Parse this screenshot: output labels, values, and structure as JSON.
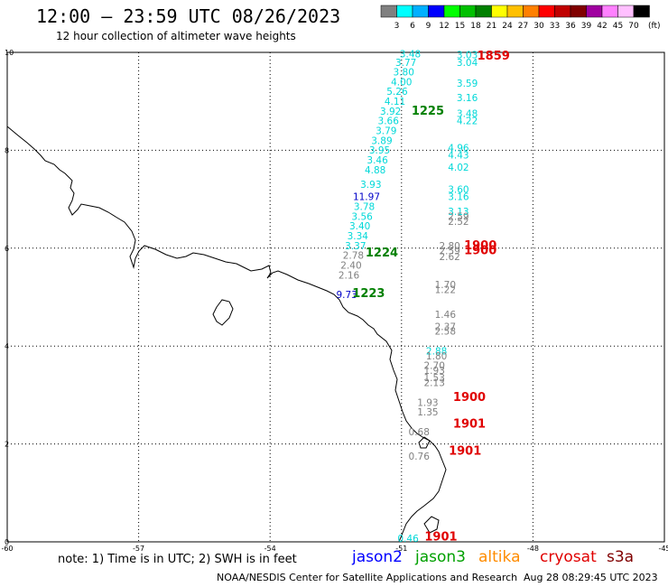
{
  "header": {
    "title": "12:00 – 23:59 UTC 08/26/2023",
    "subtitle": "12 hour collection of altimeter wave heights"
  },
  "legend": {
    "unit": "(ft)",
    "bins": [
      {
        "label": "3",
        "color": "#808080"
      },
      {
        "label": "6",
        "color": "#00ffff"
      },
      {
        "label": "9",
        "color": "#00b0ff"
      },
      {
        "label": "12",
        "color": "#0000ff"
      },
      {
        "label": "15",
        "color": "#00ff00"
      },
      {
        "label": "18",
        "color": "#00c000"
      },
      {
        "label": "21",
        "color": "#008000"
      },
      {
        "label": "24",
        "color": "#ffff00"
      },
      {
        "label": "27",
        "color": "#ffc000"
      },
      {
        "label": "30",
        "color": "#ff8000"
      },
      {
        "label": "33",
        "color": "#ff0000"
      },
      {
        "label": "36",
        "color": "#c00000"
      },
      {
        "label": "39",
        "color": "#800000"
      },
      {
        "label": "42",
        "color": "#a000a0"
      },
      {
        "label": "45",
        "color": "#ff80ff"
      },
      {
        "label": "70",
        "color": "#ffc0ff"
      },
      {
        "label": "",
        "color": "#000000"
      }
    ]
  },
  "axes": {
    "x_ticks": [
      "-60",
      "-57",
      "-54",
      "-51",
      "-48",
      "-45"
    ],
    "y_ticks": [
      "0",
      "2",
      "4",
      "6",
      "8",
      "10"
    ],
    "lon_range": [
      -60,
      -45
    ],
    "lat_range": [
      0,
      10
    ]
  },
  "colors": {
    "cyan": "#00d8d8",
    "gray": "#808080",
    "blue": "#0000c8",
    "time_green": "#008000",
    "time_red": "#e00000"
  },
  "track1": {
    "values": [
      {
        "t": "3.48",
        "c": "cyan",
        "lon": -50.8,
        "lat": 9.9
      },
      {
        "t": "3.77",
        "c": "cyan",
        "lon": -50.9,
        "lat": 9.72
      },
      {
        "t": "3.80",
        "c": "cyan",
        "lon": -50.95,
        "lat": 9.53
      },
      {
        "t": "4.00",
        "c": "cyan",
        "lon": -51.0,
        "lat": 9.33
      },
      {
        "t": "5.26",
        "c": "cyan",
        "lon": -51.1,
        "lat": 9.13
      },
      {
        "t": "4.11",
        "c": "cyan",
        "lon": -51.15,
        "lat": 8.93
      },
      {
        "t": "3.92",
        "c": "cyan",
        "lon": -51.25,
        "lat": 8.73
      },
      {
        "t": "3.66",
        "c": "cyan",
        "lon": -51.3,
        "lat": 8.53
      },
      {
        "t": "3.79",
        "c": "cyan",
        "lon": -51.35,
        "lat": 8.33
      },
      {
        "t": "3.89",
        "c": "cyan",
        "lon": -51.45,
        "lat": 8.13
      },
      {
        "t": "3.95",
        "c": "cyan",
        "lon": -51.5,
        "lat": 7.93
      },
      {
        "t": "3.46",
        "c": "cyan",
        "lon": -51.55,
        "lat": 7.73
      },
      {
        "t": "4.88",
        "c": "cyan",
        "lon": -51.6,
        "lat": 7.53
      },
      {
        "t": "3.93",
        "c": "cyan",
        "lon": -51.7,
        "lat": 7.23
      },
      {
        "t": "11.97",
        "c": "blue",
        "lon": -51.8,
        "lat": 6.98
      },
      {
        "t": "3.78",
        "c": "cyan",
        "lon": -51.85,
        "lat": 6.78
      },
      {
        "t": "3.56",
        "c": "cyan",
        "lon": -51.9,
        "lat": 6.58
      },
      {
        "t": "3.40",
        "c": "cyan",
        "lon": -51.95,
        "lat": 6.38
      },
      {
        "t": "3.34",
        "c": "cyan",
        "lon": -52.0,
        "lat": 6.18
      },
      {
        "t": "3.37",
        "c": "cyan",
        "lon": -52.05,
        "lat": 5.98
      },
      {
        "t": "2.78",
        "c": "gray",
        "lon": -52.1,
        "lat": 5.78
      },
      {
        "t": "2.40",
        "c": "gray",
        "lon": -52.15,
        "lat": 5.58
      },
      {
        "t": "2.16",
        "c": "gray",
        "lon": -52.2,
        "lat": 5.38
      },
      {
        "t": "9.73",
        "c": "blue",
        "lon": -52.25,
        "lat": 4.98
      }
    ],
    "times": [
      {
        "t": "1225",
        "c": "time_green",
        "lon": -50.4,
        "lat": 8.73
      },
      {
        "t": "1224",
        "c": "time_green",
        "lon": -51.45,
        "lat": 5.83
      },
      {
        "t": "1223",
        "c": "time_green",
        "lon": -51.75,
        "lat": 5.0
      }
    ]
  },
  "track2": {
    "values": [
      {
        "t": "3.03",
        "c": "cyan",
        "lon": -49.5,
        "lat": 9.88
      },
      {
        "t": "3.04",
        "c": "cyan",
        "lon": -49.5,
        "lat": 9.72
      },
      {
        "t": "3.59",
        "c": "cyan",
        "lon": -49.5,
        "lat": 9.3
      },
      {
        "t": "3.16",
        "c": "cyan",
        "lon": -49.5,
        "lat": 9.0
      },
      {
        "t": "3.48",
        "c": "cyan",
        "lon": -49.5,
        "lat": 8.68
      },
      {
        "t": "4.22",
        "c": "cyan",
        "lon": -49.5,
        "lat": 8.53
      },
      {
        "t": "4.96",
        "c": "cyan",
        "lon": -49.7,
        "lat": 7.98
      },
      {
        "t": "4.43",
        "c": "cyan",
        "lon": -49.7,
        "lat": 7.83
      },
      {
        "t": "4.02",
        "c": "cyan",
        "lon": -49.7,
        "lat": 7.58
      },
      {
        "t": "3.60",
        "c": "cyan",
        "lon": -49.7,
        "lat": 7.13
      },
      {
        "t": "3.16",
        "c": "cyan",
        "lon": -49.7,
        "lat": 6.98
      },
      {
        "t": "3.13",
        "c": "cyan",
        "lon": -49.7,
        "lat": 6.68
      },
      {
        "t": "2.59",
        "c": "gray",
        "lon": -49.7,
        "lat": 6.58
      },
      {
        "t": "2.52",
        "c": "gray",
        "lon": -49.7,
        "lat": 6.48
      },
      {
        "t": "2.80",
        "c": "gray",
        "lon": -49.9,
        "lat": 5.98
      },
      {
        "t": "2.59",
        "c": "gray",
        "lon": -49.9,
        "lat": 5.88
      },
      {
        "t": "2.62",
        "c": "gray",
        "lon": -49.9,
        "lat": 5.76
      },
      {
        "t": "1.70",
        "c": "gray",
        "lon": -50.0,
        "lat": 5.18
      },
      {
        "t": "1.22",
        "c": "gray",
        "lon": -50.0,
        "lat": 5.08
      },
      {
        "t": "1.46",
        "c": "gray",
        "lon": -50.0,
        "lat": 4.58
      },
      {
        "t": "2.37",
        "c": "gray",
        "lon": -50.0,
        "lat": 4.33
      },
      {
        "t": "2.58",
        "c": "gray",
        "lon": -50.0,
        "lat": 4.23
      },
      {
        "t": "2.88",
        "c": "cyan",
        "lon": -50.2,
        "lat": 3.83
      },
      {
        "t": "1.80",
        "c": "gray",
        "lon": -50.2,
        "lat": 3.73
      },
      {
        "t": "2.70",
        "c": "gray",
        "lon": -50.25,
        "lat": 3.53
      },
      {
        "t": "1.93",
        "c": "gray",
        "lon": -50.25,
        "lat": 3.43
      },
      {
        "t": "1.53",
        "c": "gray",
        "lon": -50.25,
        "lat": 3.28
      },
      {
        "t": "2.13",
        "c": "gray",
        "lon": -50.25,
        "lat": 3.18
      },
      {
        "t": "1.93",
        "c": "gray",
        "lon": -50.4,
        "lat": 2.78
      },
      {
        "t": "1.35",
        "c": "gray",
        "lon": -50.4,
        "lat": 2.58
      },
      {
        "t": "0.68",
        "c": "gray",
        "lon": -50.6,
        "lat": 2.18
      },
      {
        "t": "0.76",
        "c": "gray",
        "lon": -50.6,
        "lat": 1.68
      },
      {
        "t": "0.46",
        "c": "cyan",
        "lon": -50.85,
        "lat": 0.0
      }
    ],
    "times": [
      {
        "t": "1859",
        "c": "time_red",
        "lon": -48.9,
        "lat": 9.85
      },
      {
        "t": "1900",
        "c": "time_red",
        "lon": -49.2,
        "lat": 5.98
      },
      {
        "t": "1900",
        "c": "time_red",
        "lon": -49.2,
        "lat": 5.88
      },
      {
        "t": "1900",
        "c": "time_red",
        "lon": -49.45,
        "lat": 2.88
      },
      {
        "t": "1901",
        "c": "time_red",
        "lon": -49.45,
        "lat": 2.33
      },
      {
        "t": "1901",
        "c": "time_red",
        "lon": -49.55,
        "lat": 1.78
      },
      {
        "t": "1901",
        "c": "time_red",
        "lon": -50.1,
        "lat": 0.03
      }
    ]
  },
  "footer": {
    "note": "note:  1) Time is in UTC;  2) SWH is in feet",
    "satellites": [
      {
        "name": "jason2",
        "color": "#0000ff"
      },
      {
        "name": "jason3",
        "color": "#00a000"
      },
      {
        "name": "altika",
        "color": "#ff8c00"
      },
      {
        "name": "cryosat",
        "color": "#e00000"
      },
      {
        "name": "s3a",
        "color": "#800000"
      }
    ],
    "credit": "NOAA/NESDIS Center for Satellite Applications and Research",
    "timestamp": "Aug 28 08:29:45 UTC 2023"
  }
}
